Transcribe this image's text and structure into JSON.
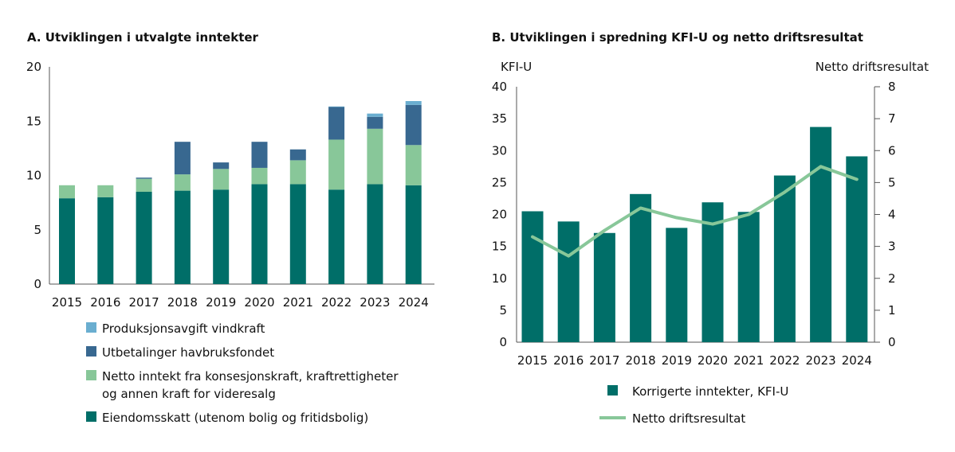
{
  "chart_data": [
    {
      "type": "bar",
      "stacked": true,
      "title": "A. Utviklingen i utvalgte inntekter",
      "categories": [
        "2015",
        "2016",
        "2017",
        "2018",
        "2019",
        "2020",
        "2021",
        "2022",
        "2023",
        "2024"
      ],
      "ylim": [
        0,
        20
      ],
      "yticks": [
        0,
        5,
        10,
        15,
        20
      ],
      "grid": false,
      "legend_placement": "bottom",
      "series": [
        {
          "name": "Eiendomsskatt (utenom bolig og fritidsbolig)",
          "color": "#006e68",
          "values": [
            7.9,
            8.0,
            8.5,
            8.6,
            8.7,
            9.2,
            9.2,
            8.7,
            9.2,
            9.1
          ]
        },
        {
          "name": "Netto inntekt fra konsesjonskraft, kraftrettigheter og annen kraft for videresalg",
          "legend_lines": [
            "Netto inntekt fra konsesjonskraft, kraftrettigheter",
            "og annen kraft for videresalg"
          ],
          "color": "#88c799",
          "values": [
            1.2,
            1.1,
            1.2,
            1.5,
            1.9,
            1.5,
            2.2,
            4.6,
            5.1,
            3.7
          ]
        },
        {
          "name": "Utbetalinger havbruksfondet",
          "color": "#386890",
          "values": [
            0,
            0,
            0.1,
            3.0,
            0.6,
            2.4,
            1.0,
            3.0,
            1.1,
            3.7
          ]
        },
        {
          "name": "Produksjonsavgift vindkraft",
          "color": "#6aaed0",
          "values": [
            0,
            0,
            0,
            0,
            0,
            0,
            0,
            0.05,
            0.3,
            0.35
          ]
        }
      ]
    },
    {
      "type": "bar+line",
      "title": "B. Utviklingen i spredning KFI-U og netto driftsresultat",
      "categories": [
        "2015",
        "2016",
        "2017",
        "2018",
        "2019",
        "2020",
        "2021",
        "2022",
        "2023",
        "2024"
      ],
      "ylabel_left": "KFI-U",
      "ylabel_right": "Netto driftsresultat",
      "ylim_left": [
        0,
        40
      ],
      "yticks_left": [
        0,
        5,
        10,
        15,
        20,
        25,
        30,
        35,
        40
      ],
      "ylim_right": [
        0,
        8
      ],
      "yticks_right": [
        0,
        1,
        2,
        3,
        4,
        5,
        6,
        7,
        8
      ],
      "grid": false,
      "legend_placement": "bottom",
      "bars": {
        "name": "Korrigerte inntekter, KFI-U",
        "color": "#006e68",
        "axis": "left",
        "values": [
          20.5,
          18.9,
          17.1,
          23.2,
          17.9,
          21.9,
          20.4,
          26.1,
          33.7,
          29.1
        ]
      },
      "line": {
        "name": "Netto driftsresultat",
        "color": "#88c799",
        "axis": "right",
        "values": [
          3.3,
          2.7,
          3.5,
          4.2,
          3.9,
          3.7,
          4.0,
          4.7,
          5.5,
          5.1
        ]
      }
    }
  ]
}
